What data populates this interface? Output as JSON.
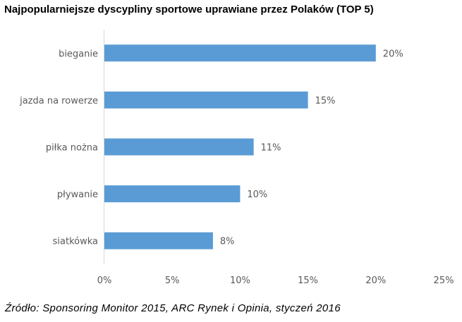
{
  "chart_data": {
    "type": "bar",
    "orientation": "horizontal",
    "title": "Najpopularniejsze dyscypliny sportowe uprawiane przez Polaków (TOP 5)",
    "categories": [
      "bieganie",
      "jazda na rowerze",
      "piłka nożna",
      "pływanie",
      "siatkówka"
    ],
    "values": [
      20,
      15,
      11,
      10,
      8
    ],
    "data_labels": [
      "20%",
      "15%",
      "11%",
      "10%",
      "8%"
    ],
    "xlim": [
      0,
      25
    ],
    "x_ticks": [
      0,
      5,
      10,
      15,
      20,
      25
    ],
    "x_tick_labels": [
      "0%",
      "5%",
      "10%",
      "15%",
      "20%",
      "25%"
    ],
    "xlabel": "",
    "ylabel": "",
    "grid": false,
    "bar_color": "#5B9BD5"
  },
  "source": "Źródło: Sponsoring Monitor 2015, ARC Rynek i Opinia, styczeń 2016"
}
